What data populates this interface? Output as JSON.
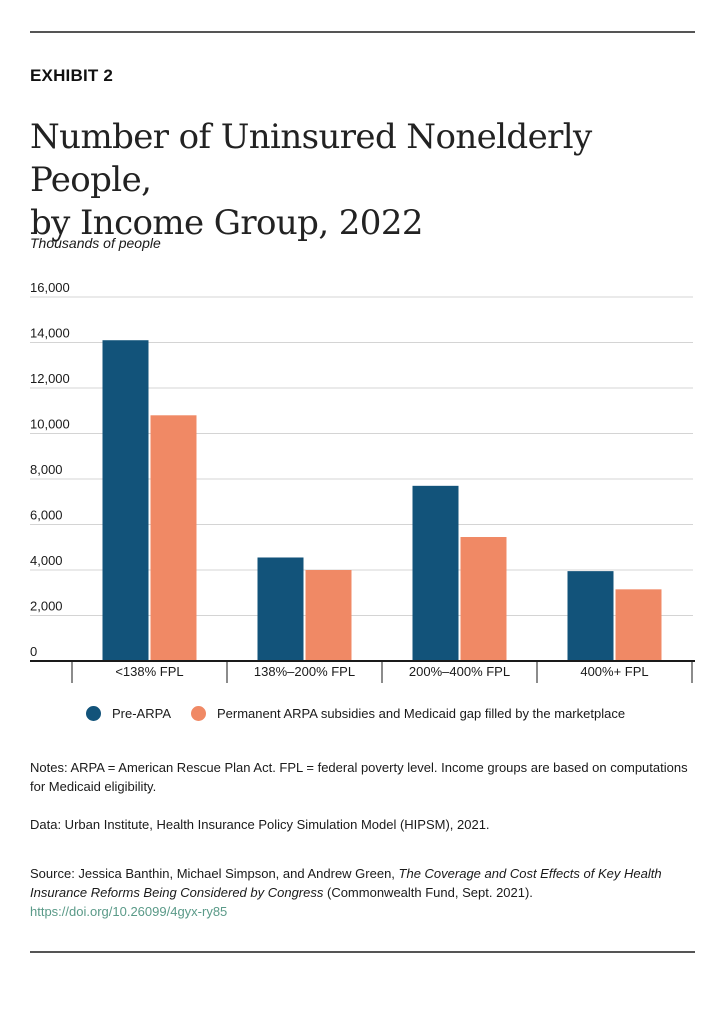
{
  "header": {
    "exhibit": "EXHIBIT 2",
    "title_line1": "Number of Uninsured Nonelderly People,",
    "title_line2": "by Income Group, 2022",
    "unit_label": "Thousands of people"
  },
  "chart_data": {
    "type": "bar",
    "title": "Number of Uninsured Nonelderly People, by Income Group, 2022",
    "ylabel": "Thousands of people",
    "xlabel": "",
    "categories": [
      "<138% FPL",
      "138%–200% FPL",
      "200%–400% FPL",
      "400%+ FPL"
    ],
    "series": [
      {
        "name": "Pre-ARPA",
        "color": "#12537a",
        "values": [
          14100,
          4550,
          7700,
          3950
        ]
      },
      {
        "name": "Permanent ARPA subsidies and Medicaid gap filled by the marketplace",
        "color": "#f08965",
        "values": [
          10800,
          4000,
          5450,
          3150
        ]
      }
    ],
    "ylim": [
      0,
      16000
    ],
    "yticks": [
      0,
      2000,
      4000,
      6000,
      8000,
      10000,
      12000,
      14000,
      16000
    ],
    "ytick_labels": [
      "0",
      "2,000",
      "4,000",
      "6,000",
      "8,000",
      "10,000",
      "12,000",
      "14,000",
      "16,000"
    ],
    "grid": true,
    "legend_position": "bottom"
  },
  "legend": {
    "items": [
      {
        "label": "Pre-ARPA",
        "color": "#12537a"
      },
      {
        "label": "Permanent ARPA subsidies and Medicaid gap filled by the marketplace",
        "color": "#f08965"
      }
    ]
  },
  "footer": {
    "notes": "Notes: ARPA = American Rescue Plan Act. FPL = federal poverty level. Income groups are based on computations for Medicaid eligibility.",
    "data_source": "Data: Urban Institute, Health Insurance Policy Simulation Model (HIPSM), 2021.",
    "source_prefix": "Source: Jessica Banthin, Michael Simpson, and Andrew Green, ",
    "source_title": "The Coverage and Cost Effects of Key Health Insurance Reforms Being Considered by Congress",
    "source_suffix": " (Commonwealth Fund, Sept. 2021). ",
    "source_link": "https://doi.org/10.26099/4gyx-ry85"
  }
}
